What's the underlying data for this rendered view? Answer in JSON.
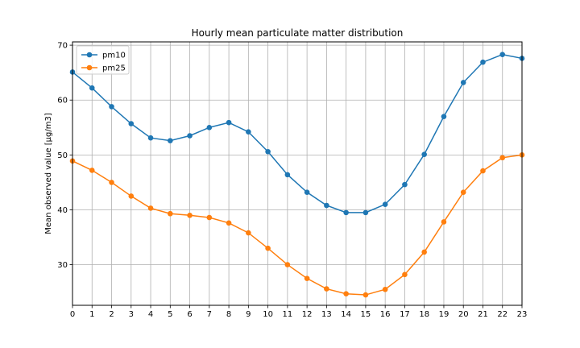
{
  "chart_data": {
    "type": "line",
    "title": "Hourly mean particulate matter distribution",
    "xlabel": "",
    "ylabel": "Mean observed value [µg/m3]",
    "xlim": [
      0,
      23
    ],
    "ylim": [
      22.6,
      70.6
    ],
    "x": [
      0,
      1,
      2,
      3,
      4,
      5,
      6,
      7,
      8,
      9,
      10,
      11,
      12,
      13,
      14,
      15,
      16,
      17,
      18,
      19,
      20,
      21,
      22,
      23
    ],
    "xticks": [
      "0",
      "1",
      "2",
      "3",
      "4",
      "5",
      "6",
      "7",
      "8",
      "9",
      "10",
      "11",
      "12",
      "13",
      "14",
      "15",
      "16",
      "17",
      "18",
      "19",
      "20",
      "21",
      "22",
      "23"
    ],
    "yticks": [
      30,
      40,
      50,
      60,
      70
    ],
    "grid": true,
    "legend_position": "top-left",
    "series": [
      {
        "name": "pm10",
        "color": "#1f77b4",
        "values": [
          65.1,
          62.2,
          58.8,
          55.7,
          53.1,
          52.6,
          53.5,
          55.0,
          55.9,
          54.2,
          50.6,
          46.4,
          43.2,
          40.8,
          39.5,
          39.5,
          41.0,
          44.6,
          50.1,
          57.0,
          63.2,
          66.9,
          68.3,
          67.6
        ]
      },
      {
        "name": "pm25",
        "color": "#ff7f0e",
        "values": [
          48.9,
          47.2,
          45.0,
          42.5,
          40.3,
          39.3,
          39.0,
          38.6,
          37.6,
          35.8,
          33.0,
          30.0,
          27.5,
          25.6,
          24.7,
          24.5,
          25.5,
          28.2,
          32.3,
          37.8,
          43.2,
          47.1,
          49.5,
          50.0
        ]
      }
    ]
  }
}
